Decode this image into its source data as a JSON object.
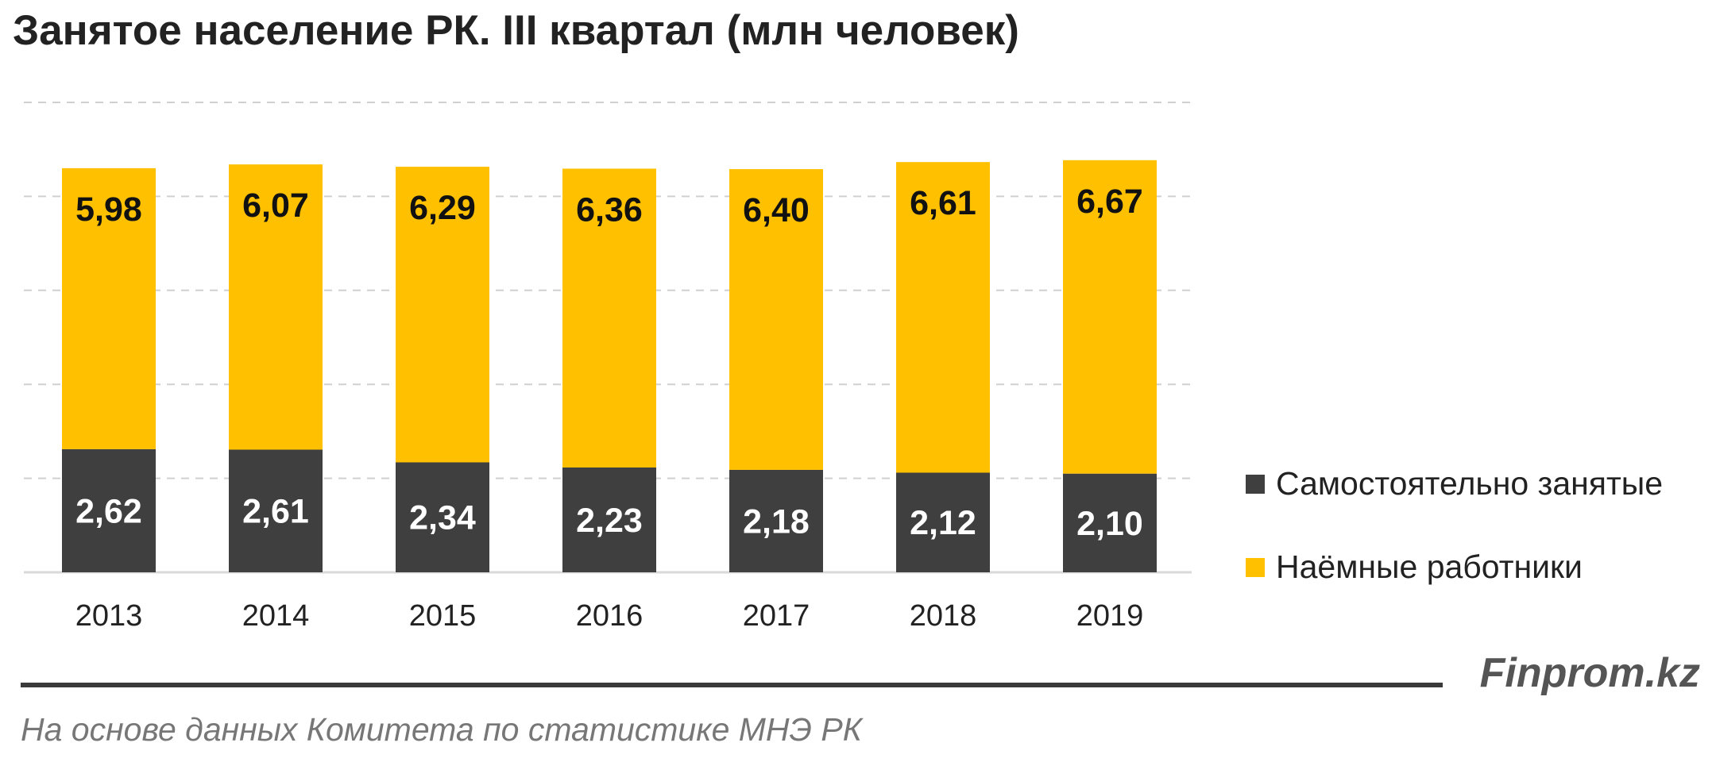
{
  "chart_data": {
    "type": "bar",
    "stacked": true,
    "title": "Занятое население РК. III квартал (млн человек)",
    "categories": [
      "2013",
      "2014",
      "2015",
      "2016",
      "2017",
      "2018",
      "2019"
    ],
    "series": [
      {
        "name": "Самостоятельно занятые",
        "color": "#3f3f3f",
        "values": [
          2.62,
          2.61,
          2.34,
          2.23,
          2.18,
          2.12,
          2.1
        ],
        "labels": [
          "2,62",
          "2,61",
          "2,34",
          "2,23",
          "2,18",
          "2,12",
          "2,10"
        ]
      },
      {
        "name": "Наёмные работники",
        "color": "#ffc000",
        "values": [
          5.98,
          6.07,
          6.29,
          6.36,
          6.4,
          6.61,
          6.67
        ],
        "labels": [
          "5,98",
          "6,07",
          "6,29",
          "6,36",
          "6,40",
          "6,61",
          "6,67"
        ]
      }
    ],
    "ylim": [
      0,
      10
    ],
    "grid": true,
    "legend_position": "right"
  },
  "footer": {
    "brand": "Finprom.kz",
    "source": "На основе данных Комитета по статистике МНЭ РК"
  }
}
